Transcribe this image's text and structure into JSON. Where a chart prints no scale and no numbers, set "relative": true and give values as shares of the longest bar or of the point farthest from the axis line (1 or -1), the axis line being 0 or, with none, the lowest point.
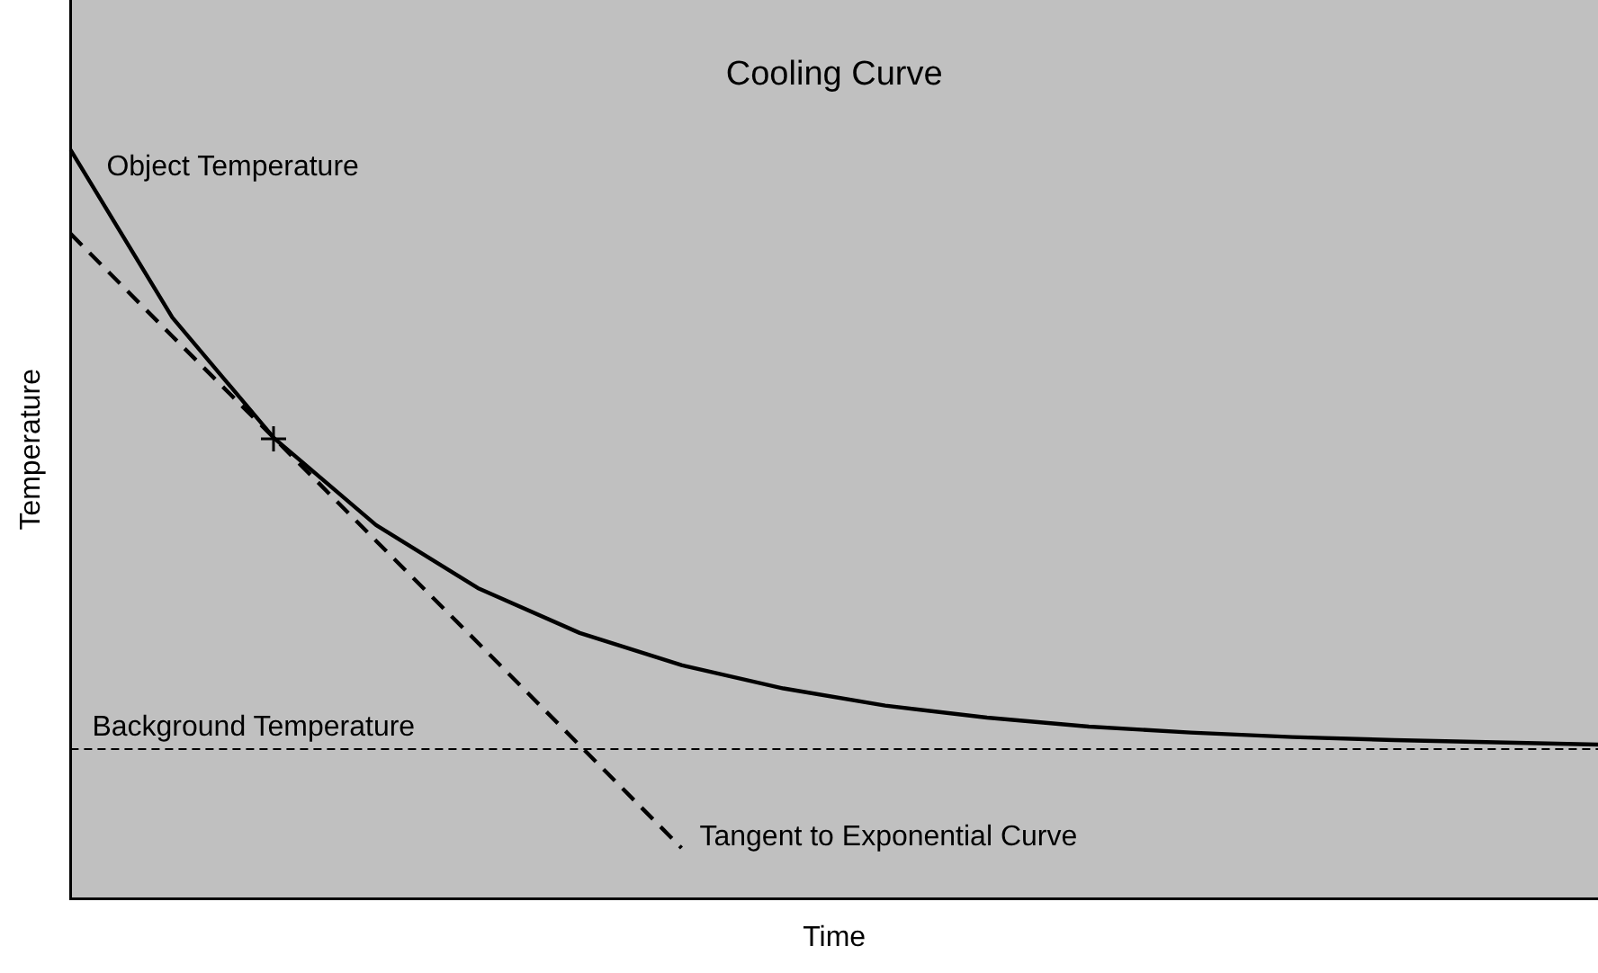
{
  "chart_data": {
    "type": "line",
    "title": "Cooling Curve",
    "xlabel": "Time",
    "ylabel": "Temperature",
    "relative": true,
    "legend": false,
    "grid": false,
    "categories": [
      null,
      null,
      null,
      null,
      null,
      null,
      null,
      null,
      null,
      null,
      null,
      null,
      null,
      null,
      null,
      null
    ],
    "series": [
      {
        "name": "Object Temperature",
        "color": "#000000",
        "line_style": "solid",
        "values": [
          1.0,
          0.776,
          0.615,
          0.499,
          0.415,
          0.355,
          0.312,
          0.281,
          0.258,
          0.242,
          0.23,
          0.222,
          0.216,
          0.212,
          0.209,
          0.206
        ]
      },
      {
        "name": "Tangent to Exponential Curve",
        "color": "#000000",
        "line_style": "dashed",
        "values": [
          0.888,
          0.751,
          0.615,
          0.478,
          0.342,
          0.205,
          0.068,
          null,
          null,
          null,
          null,
          null,
          null,
          null,
          null,
          null
        ]
      }
    ],
    "ref_lines": [
      {
        "axis": "y",
        "value": 0.2,
        "label": "Background Temperature",
        "color": "#000000",
        "line_style": "dashed"
      }
    ]
  }
}
